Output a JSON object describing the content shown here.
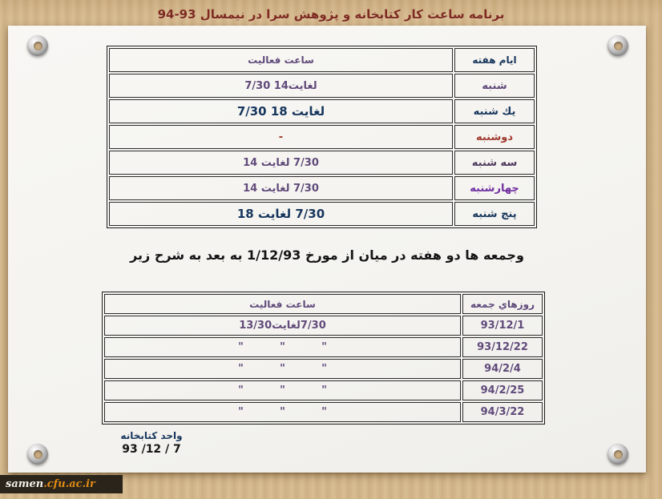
{
  "title": "برنامه ساعت كار كتابخانه و پژوهش سرا در نيمسال 93-94",
  "colors": {
    "cardboard": "#d4b78c",
    "page": "#f6f5f1",
    "title_red": "#7e2a21",
    "purple": "#604a7b",
    "navy": "#17365d",
    "red": "#a13c31",
    "violet": "#7030a0",
    "ribbon_bg": "#2a241b",
    "ribbon_orange": "#e08b13"
  },
  "table1": {
    "header": {
      "activity": "ساعت فعاليت",
      "days": "ايام هفته"
    },
    "rows": [
      {
        "day": "شنبه",
        "hours": "7/30 لغايت14"
      },
      {
        "day": "يك شنبه",
        "hours": "7/30 لغايت 18"
      },
      {
        "day": "دوشنبه",
        "hours": "-"
      },
      {
        "day": "سه شنبه",
        "hours": "7/30 لغايت 14"
      },
      {
        "day": "چهارشنبه",
        "hours": "7/30 لغايت 14"
      },
      {
        "day": "پنج شنبه",
        "hours": "7/30 لغايت 18"
      }
    ]
  },
  "note": "وجمعه ها دو هفته در ميان از مورخ 1/12/93 به بعد به شرح زير",
  "table2": {
    "header": {
      "activity": "ساعت فعاليت",
      "days": "روزهاي جمعه"
    },
    "rows": [
      {
        "date": "93/12/1",
        "hours": "7/30لغايت13/30"
      },
      {
        "date": "93/12/22",
        "hours": "\"          \"          \""
      },
      {
        "date": "94/2/4",
        "hours": "\"          \"          \""
      },
      {
        "date": "94/2/25",
        "hours": "\"          \"          \""
      },
      {
        "date": "94/3/22",
        "hours": "\"          \"          \""
      }
    ]
  },
  "footer": {
    "unit": "واحد كتابخانه",
    "date": "93 /12 / 7"
  },
  "watermark": {
    "prefix": "samen",
    "suffix": ".cfu.ac.ir"
  }
}
